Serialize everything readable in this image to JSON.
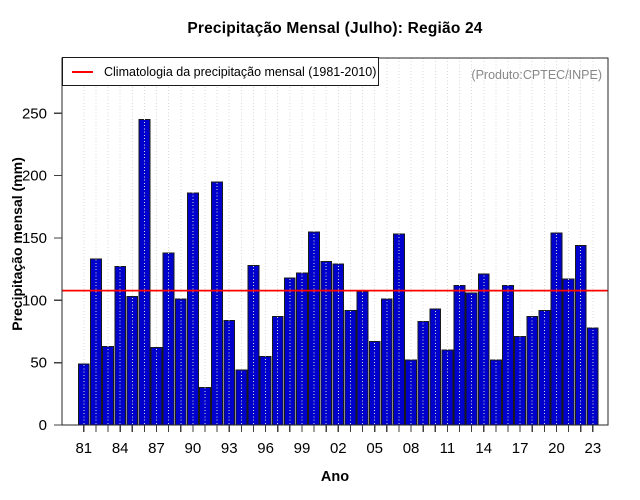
{
  "chart_data": {
    "type": "bar",
    "title": "Precipitação Mensal (Julho): Região 24",
    "xlabel": "Ano",
    "ylabel": "Precipitação mensal (mm)",
    "annotation": "(Produto:CPTEC/INPE)",
    "legend": {
      "label": "Climatologia da precipitação mensal (1981-2010)",
      "position": "top-left"
    },
    "ylim": [
      0,
      294
    ],
    "yticks": [
      0,
      50,
      100,
      150,
      200,
      250
    ],
    "x_major_tick_labels": [
      "81",
      "84",
      "87",
      "90",
      "93",
      "96",
      "99",
      "02",
      "05",
      "08",
      "11",
      "14",
      "17",
      "20",
      "23"
    ],
    "x_major_tick_step": 3,
    "grid": "vertical-dotted-per-year",
    "legend_position": "top-left",
    "climatology": {
      "value": 107.8,
      "period": "1981-2010"
    },
    "colors": {
      "bar_fill": "#0000CD",
      "bar_border": "#1A1A1A",
      "climatology_line": "#FF0000",
      "grid_line": "#D9D9D9",
      "axis": "#262626",
      "annotation_text": "#898989"
    },
    "categories": [
      "1981",
      "1982",
      "1983",
      "1984",
      "1985",
      "1986",
      "1987",
      "1988",
      "1989",
      "1990",
      "1991",
      "1992",
      "1993",
      "1994",
      "1995",
      "1996",
      "1997",
      "1998",
      "1999",
      "2000",
      "2001",
      "2002",
      "2003",
      "2004",
      "2005",
      "2006",
      "2007",
      "2008",
      "2009",
      "2010",
      "2011",
      "2012",
      "2013",
      "2014",
      "2015",
      "2016",
      "2017",
      "2018",
      "2019",
      "2020",
      "2021",
      "2022",
      "2023"
    ],
    "values": [
      49,
      133,
      63,
      127,
      103,
      245,
      62,
      138,
      101,
      186,
      30,
      195,
      84,
      44,
      128,
      55,
      87,
      118,
      122,
      155,
      131,
      129,
      92,
      107,
      67,
      101,
      153,
      52,
      83,
      93,
      60,
      112,
      106,
      121,
      52,
      112,
      71,
      87,
      92,
      154,
      117,
      144,
      78
    ]
  }
}
